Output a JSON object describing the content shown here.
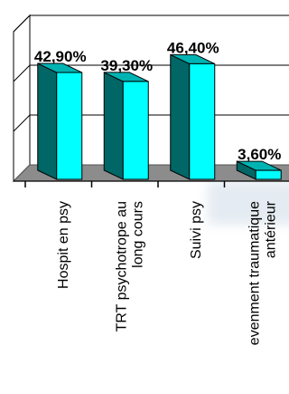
{
  "chart_data": {
    "type": "bar",
    "style": "3d",
    "categories": [
      [
        "Hospit en psy"
      ],
      [
        "TRT psychotrope au",
        "long cours"
      ],
      [
        "Suivi psy"
      ],
      [
        "evenment traumatique",
        "antérieur"
      ]
    ],
    "values": [
      42.9,
      39.3,
      46.4,
      3.6
    ],
    "value_labels": [
      "42,90%",
      "39,30%",
      "46,40%",
      "3,60%"
    ],
    "ylim": [
      0,
      60
    ],
    "grid": true,
    "legend": "none",
    "colors": {
      "bar_front": "#00FFFF",
      "bar_side": "#006666",
      "bar_top": "#00B3B3",
      "floor": "#8C8C8C",
      "wall": "#FFFFFF",
      "gridline": "#000000"
    }
  }
}
